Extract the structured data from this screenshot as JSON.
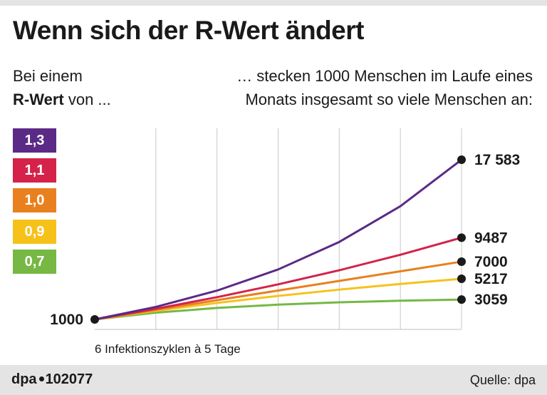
{
  "header": {
    "title": "Wenn sich der R-Wert ändert",
    "left_line1": "Bei einem",
    "left_bold": "R-Wert",
    "left_rest": " von ...",
    "right_line1": "… stecken 1000 Menschen im Laufe eines",
    "right_line2": "Monats insgesamt so viele Menschen an:"
  },
  "colors": {
    "r13": "#5b2a86",
    "r11": "#d4224a",
    "r10": "#e9801f",
    "r09": "#f6c21a",
    "r07": "#76b843",
    "grid": "#c8c8c8",
    "axis": "#bfbfbf",
    "dot": "#1a1a1a"
  },
  "chart_data": {
    "type": "line",
    "title": "Wenn sich der R-Wert ändert",
    "xlabel": "6 Infektionszyklen à 5 Tage",
    "ylabel": "",
    "x": [
      0,
      1,
      2,
      3,
      4,
      5,
      6
    ],
    "ylim": [
      0,
      18000
    ],
    "grid": true,
    "start_label": "1000",
    "series": [
      {
        "name": "1,3",
        "color": "#5b2a86",
        "values": [
          1000,
          2300,
          3990,
          6187,
          9043,
          12756,
          17583
        ],
        "end_label": "17 583"
      },
      {
        "name": "1,1",
        "color": "#d4224a",
        "values": [
          1000,
          2100,
          3310,
          4641,
          6105,
          7716,
          9487
        ],
        "end_label": "9487"
      },
      {
        "name": "1,0",
        "color": "#e9801f",
        "values": [
          1000,
          2000,
          3000,
          4000,
          5000,
          6000,
          7000
        ],
        "end_label": "7000"
      },
      {
        "name": "0,9",
        "color": "#f6c21a",
        "values": [
          1000,
          1900,
          2710,
          3439,
          4095,
          4686,
          5217
        ],
        "end_label": "5217"
      },
      {
        "name": "0,7",
        "color": "#76b843",
        "values": [
          1000,
          1700,
          2190,
          2533,
          2773,
          2941,
          3059
        ],
        "end_label": "3059"
      }
    ]
  },
  "footer": {
    "source_prefix": "dpa",
    "source_number": "102077",
    "credit": "Quelle: dpa"
  }
}
